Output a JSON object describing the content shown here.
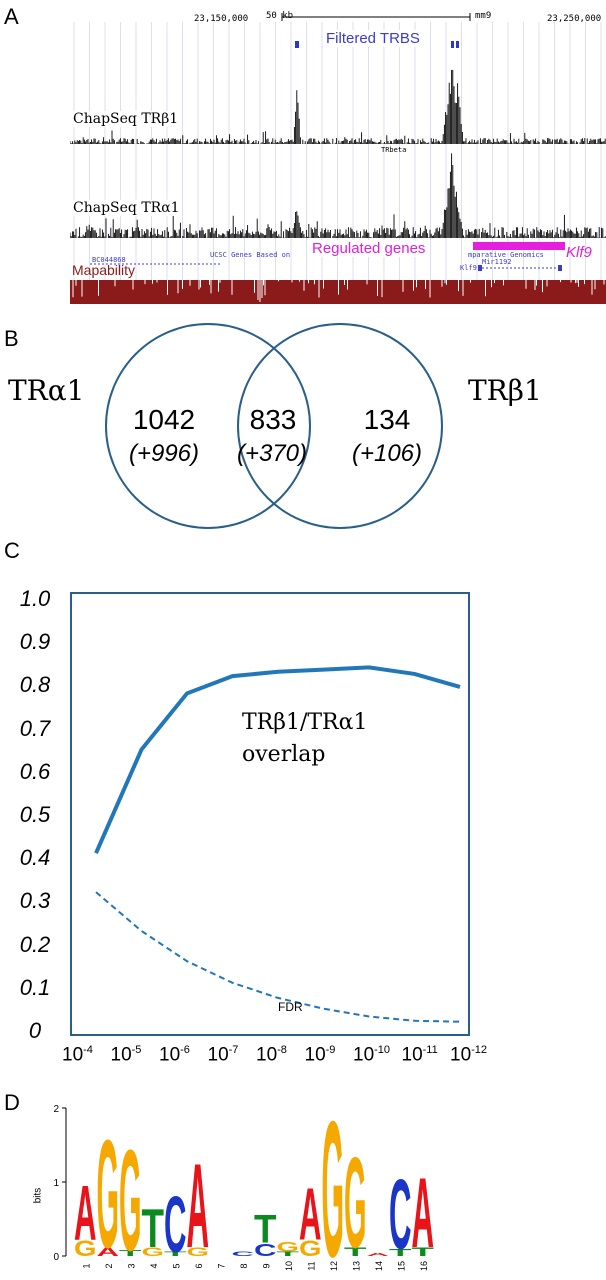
{
  "figure": {
    "panels": [
      "A",
      "B",
      "C",
      "D"
    ]
  },
  "panel_a": {
    "coord_left": "23,150,000",
    "coord_right": "23,250,000",
    "scale_label": "50 kb",
    "assembly": "mm9",
    "filtered_label": "Filtered TRBS",
    "track1_label": "ChapSeq TRβ1",
    "track_mid_label": "TRbeta",
    "track2_label": "ChapSeq TRα1",
    "regulated_label": "Regulated genes",
    "gene_name": "Klf9",
    "ucsc_label": "UCSC Genes Based on",
    "comparative_label": "mparative Genomics",
    "mir_label": "Mir1192",
    "klf9_small": "Klf9",
    "bc_label": "BC044868",
    "mapability_label": "Mapability",
    "colors": {
      "signal": "#000000",
      "filtered": "#2a35c9",
      "regulated": "#e51fdd",
      "mapability": "#8b1a1a"
    }
  },
  "panel_b": {
    "left_label": "TRα1",
    "right_label": "TRβ1",
    "left_count": "1042",
    "left_extra": "(+996)",
    "mid_count": "833",
    "mid_extra": "(+370)",
    "right_count": "134",
    "right_extra": "(+106)",
    "circle_color": "#2a5f8a"
  },
  "chart_data": {
    "type": "line",
    "x_ticks": [
      "10-4",
      "10-5",
      "10-6",
      "10-7",
      "10-8",
      "10-9",
      "10-10",
      "10-11",
      "10-12"
    ],
    "y_ticks": [
      "1.0",
      "0.9",
      "0.8",
      "0.7",
      "0.6",
      "0.5",
      "0.4",
      "0.3",
      "0.2",
      "0.1",
      "0"
    ],
    "ylim": [
      0,
      1.0
    ],
    "series": [
      {
        "name": "TRβ1/TRα1 overlap",
        "style": "solid",
        "color": "#2277b8",
        "points": [
          [
            -4,
            0.4
          ],
          [
            -5,
            0.64
          ],
          [
            -6,
            0.77
          ],
          [
            -7,
            0.81
          ],
          [
            -8,
            0.82
          ],
          [
            -9,
            0.825
          ],
          [
            -10,
            0.83
          ],
          [
            -11,
            0.815
          ],
          [
            -12,
            0.785
          ]
        ]
      },
      {
        "name": "FDR",
        "style": "dashed",
        "color": "#2277b8",
        "points": [
          [
            -4,
            0.31
          ],
          [
            -5,
            0.22
          ],
          [
            -6,
            0.15
          ],
          [
            -7,
            0.1
          ],
          [
            -8,
            0.065
          ],
          [
            -9,
            0.04
          ],
          [
            -10,
            0.022
          ],
          [
            -11,
            0.012
          ],
          [
            -12,
            0.01
          ]
        ]
      }
    ],
    "annotation_line1": "TRβ1/TRα1",
    "annotation_line2": "overlap",
    "fdr_label": "FDR"
  },
  "panel_d": {
    "y_axis_label": "bits",
    "y_ticks": [
      "2",
      "1",
      "0"
    ],
    "positions": [
      "1",
      "2",
      "3",
      "4",
      "5",
      "6",
      "7",
      "8",
      "9",
      "10",
      "11",
      "12",
      "13",
      "14",
      "15",
      "16"
    ],
    "colors": {
      "A": "#e8141a",
      "G": "#f5a800",
      "T": "#0b8a1e",
      "C": "#1a35c7"
    },
    "logo": [
      [
        [
          "G",
          0.22
        ],
        [
          "A",
          0.78
        ]
      ],
      [
        [
          "A",
          0.12
        ],
        [
          "G",
          1.55
        ]
      ],
      [
        [
          "T",
          0.08
        ],
        [
          "G",
          1.45
        ]
      ],
      [
        [
          "G",
          0.12
        ],
        [
          "T",
          0.55
        ]
      ],
      [
        [
          "T",
          0.06
        ],
        [
          "C",
          0.8
        ]
      ],
      [
        [
          "G",
          0.12
        ],
        [
          "A",
          1.2
        ]
      ],
      [],
      [
        [
          "C",
          0.06
        ]
      ],
      [
        [
          "C",
          0.18
        ],
        [
          "T",
          0.4
        ]
      ],
      [
        [
          "T",
          0.06
        ],
        [
          "G",
          0.14
        ]
      ],
      [
        [
          "G",
          0.22
        ],
        [
          "A",
          0.75
        ]
      ],
      [
        [
          "G",
          1.95
        ]
      ],
      [
        [
          "T",
          0.12
        ],
        [
          "G",
          1.3
        ]
      ],
      [
        [
          "A",
          0.05
        ]
      ],
      [
        [
          "T",
          0.1
        ],
        [
          "C",
          1.0
        ]
      ],
      [
        [
          "T",
          0.12
        ],
        [
          "A",
          1.0
        ]
      ]
    ]
  }
}
